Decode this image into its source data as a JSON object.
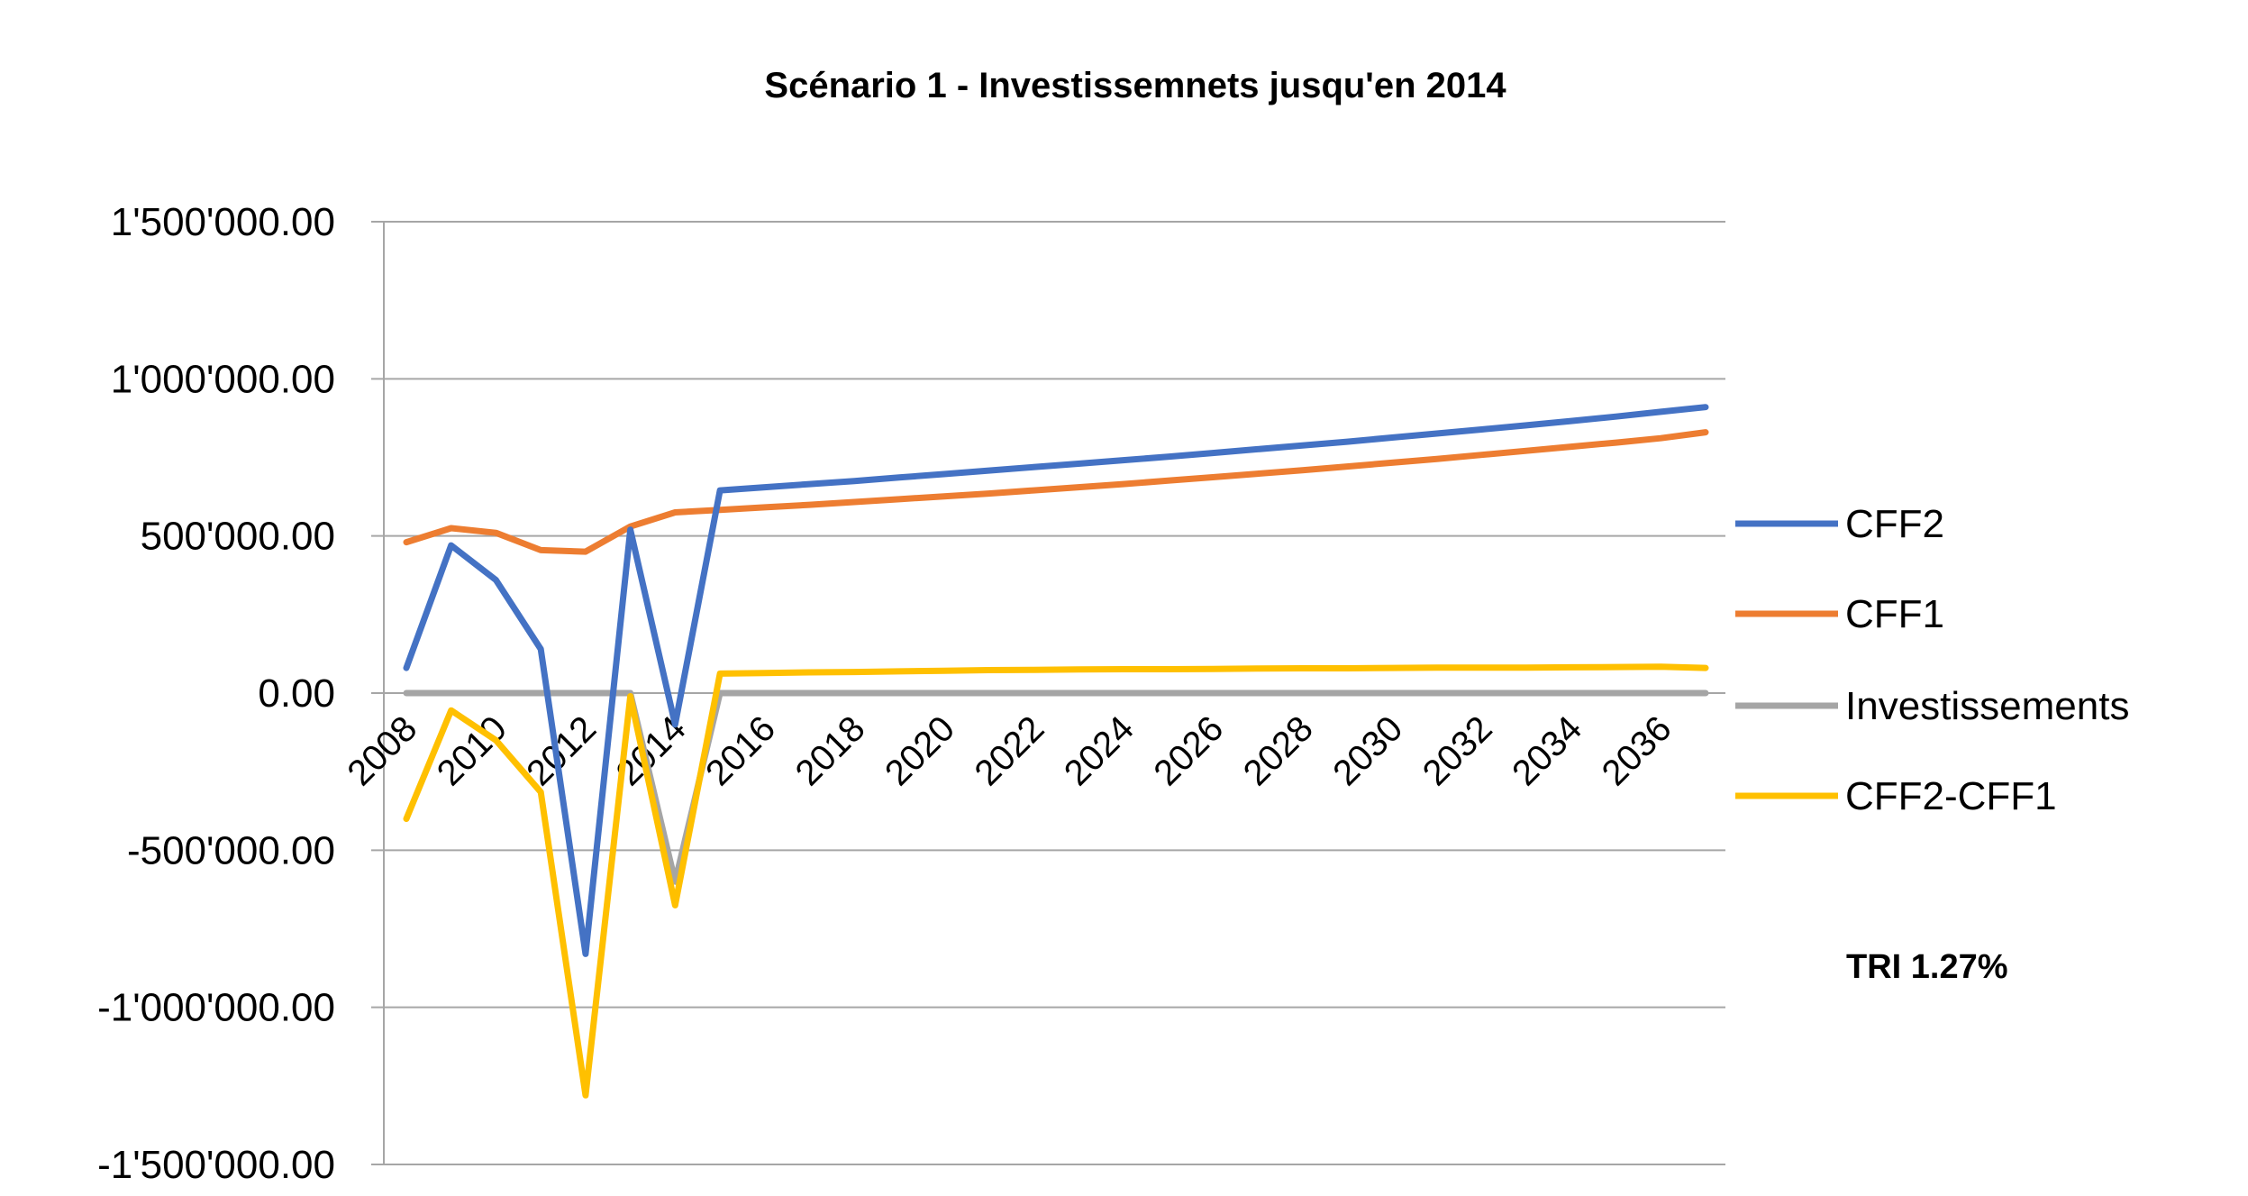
{
  "chart_data": {
    "type": "line",
    "title": "Scénario 1 - Investissemnets jusqu'en 2014",
    "xlabel": "",
    "ylabel": "",
    "ylim": [
      -1500000,
      1500000
    ],
    "yticks": [
      1500000,
      1000000,
      500000,
      0,
      -500000,
      -1000000,
      -1500000
    ],
    "ytick_labels": [
      "1'500'000.00",
      "1'000'000.00",
      "500'000.00",
      "0.00",
      "-500'000.00",
      "-1'000'000.00",
      "-1'500'000.00"
    ],
    "x": [
      2008,
      2009,
      2010,
      2011,
      2012,
      2013,
      2014,
      2015,
      2016,
      2017,
      2018,
      2019,
      2020,
      2021,
      2022,
      2023,
      2024,
      2025,
      2026,
      2027,
      2028,
      2029,
      2030,
      2031,
      2032,
      2033,
      2034,
      2035,
      2036,
      2037
    ],
    "xtick_labels": [
      "2008",
      "2010",
      "2012",
      "2014",
      "2016",
      "2018",
      "2020",
      "2022",
      "2024",
      "2026",
      "2028",
      "2030",
      "2032",
      "2034",
      "2036"
    ],
    "grid": true,
    "legend_position": "right",
    "series": [
      {
        "name": "CFF2",
        "color": "#4472C4",
        "values": [
          80000,
          470000,
          360000,
          140000,
          -830000,
          520000,
          -100000,
          645000,
          655000,
          665000,
          675000,
          686000,
          697000,
          708000,
          719000,
          730000,
          741000,
          752000,
          764000,
          776000,
          788000,
          800000,
          813000,
          826000,
          839000,
          852000,
          866000,
          880000,
          895000,
          910000
        ]
      },
      {
        "name": "CFF1",
        "color": "#ED7D31",
        "values": [
          480000,
          525000,
          510000,
          455000,
          450000,
          530000,
          575000,
          583000,
          591000,
          599000,
          608000,
          617000,
          626000,
          635000,
          645000,
          655000,
          665000,
          676000,
          687000,
          698000,
          709000,
          721000,
          733000,
          745000,
          758000,
          771000,
          784000,
          797000,
          811000,
          830000
        ]
      },
      {
        "name": "Investissements",
        "color": "#A5A5A5",
        "values": [
          0,
          0,
          0,
          0,
          0,
          0,
          -600000,
          0,
          0,
          0,
          0,
          0,
          0,
          0,
          0,
          0,
          0,
          0,
          0,
          0,
          0,
          0,
          0,
          0,
          0,
          0,
          0,
          0,
          0,
          0
        ]
      },
      {
        "name": "CFF2-CFF1",
        "color": "#FFC000",
        "values": [
          -400000,
          -55000,
          -150000,
          -315000,
          -1280000,
          -10000,
          -675000,
          62000,
          64000,
          66000,
          67000,
          69000,
          71000,
          73000,
          74000,
          75000,
          76000,
          76000,
          77000,
          78000,
          79000,
          79000,
          80000,
          81000,
          81000,
          81000,
          82000,
          83000,
          84000,
          80000
        ]
      }
    ],
    "annotation": "TRI 1.27%"
  }
}
